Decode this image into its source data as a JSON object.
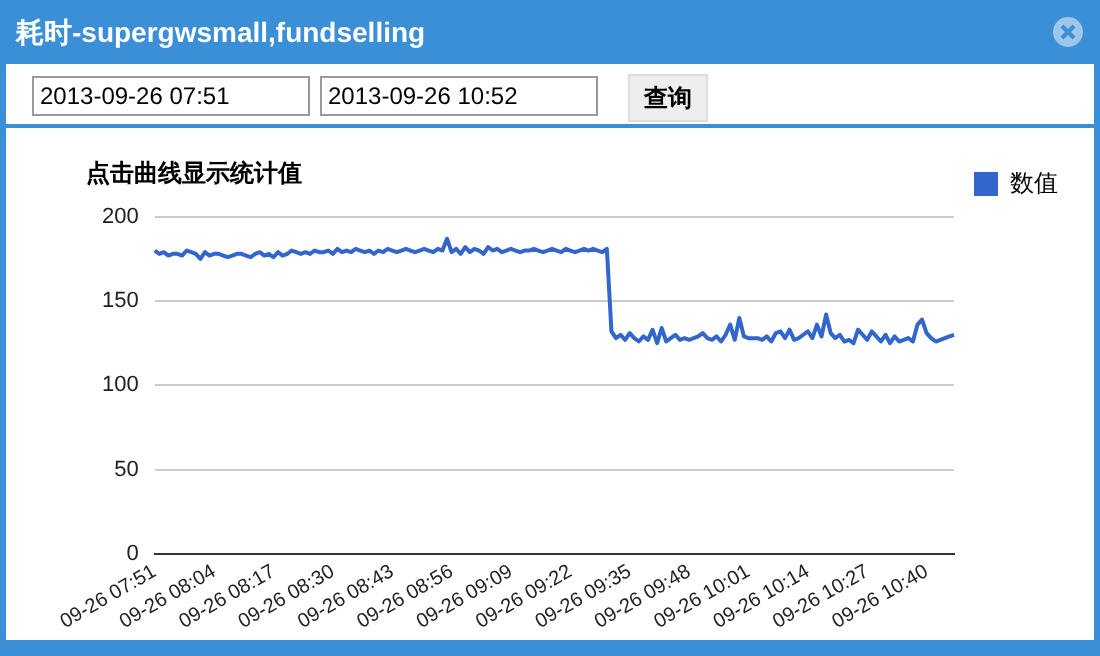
{
  "chart_data": {
    "type": "line",
    "title": "耗时-supergwsmall,fundselling",
    "subtitle": "点击曲线显示统计值",
    "annotations": [
      "2013-09-26 07:51",
      "2013-09-26 10:52",
      "查询"
    ],
    "categories": [
      "09-26 07:51",
      null,
      null,
      null,
      null,
      null,
      null,
      null,
      null,
      null,
      null,
      null,
      null,
      "09-26 08:04",
      null,
      null,
      null,
      null,
      null,
      null,
      null,
      null,
      null,
      null,
      null,
      null,
      "09-26 08:17",
      null,
      null,
      null,
      null,
      null,
      null,
      null,
      null,
      null,
      null,
      null,
      null,
      "09-26 08:30",
      null,
      null,
      null,
      null,
      null,
      null,
      null,
      null,
      null,
      null,
      null,
      null,
      "09-26 08:43",
      null,
      null,
      null,
      null,
      null,
      null,
      null,
      null,
      null,
      null,
      null,
      null,
      "09-26 08:56",
      null,
      null,
      null,
      null,
      null,
      null,
      null,
      null,
      null,
      null,
      null,
      null,
      "09-26 09:09",
      null,
      null,
      null,
      null,
      null,
      null,
      null,
      null,
      null,
      null,
      null,
      null,
      "09-26 09:22",
      null,
      null,
      null,
      null,
      null,
      null,
      null,
      null,
      null,
      null,
      null,
      null,
      "09-26 09:35",
      null,
      null,
      null,
      null,
      null,
      null,
      null,
      null,
      null,
      null,
      null,
      null,
      "09-26 09:48",
      null,
      null,
      null,
      null,
      null,
      null,
      null,
      null,
      null,
      null,
      null,
      null,
      "09-26 10:01",
      null,
      null,
      null,
      null,
      null,
      null,
      null,
      null,
      null,
      null,
      null,
      null,
      "09-26 10:14",
      null,
      null,
      null,
      null,
      null,
      null,
      null,
      null,
      null,
      null,
      null,
      null,
      "09-26 10:27",
      null,
      null,
      null,
      null,
      null,
      null,
      null,
      null,
      null,
      null,
      null,
      null,
      "09-26 10:40",
      null,
      null,
      null,
      null,
      null,
      null
    ],
    "series": [
      {
        "name": "数值",
        "color": "#3366cc",
        "values": [
          180,
          178,
          179,
          177,
          178,
          178,
          177,
          180,
          179,
          178,
          175,
          179,
          177,
          178,
          178,
          177,
          176,
          177,
          178,
          178,
          177,
          176,
          178,
          179,
          177,
          178,
          176,
          179,
          177,
          178,
          180,
          179,
          178,
          179,
          178,
          180,
          179,
          179,
          180,
          178,
          181,
          179,
          180,
          179,
          181,
          180,
          179,
          180,
          178,
          180,
          179,
          181,
          180,
          179,
          180,
          181,
          180,
          179,
          180,
          181,
          180,
          179,
          181,
          180,
          187,
          179,
          181,
          178,
          182,
          179,
          181,
          180,
          178,
          182,
          180,
          181,
          179,
          180,
          181,
          180,
          179,
          180,
          180,
          181,
          180,
          179,
          180,
          181,
          180,
          179,
          181,
          180,
          179,
          180,
          181,
          180,
          181,
          180,
          179,
          181,
          132,
          128,
          130,
          127,
          131,
          128,
          126,
          129,
          127,
          133,
          125,
          134,
          126,
          128,
          130,
          127,
          128,
          127,
          128,
          129,
          131,
          128,
          127,
          129,
          126,
          130,
          136,
          127,
          140,
          129,
          128,
          128,
          128,
          127,
          129,
          126,
          131,
          132,
          128,
          133,
          127,
          128,
          130,
          132,
          128,
          136,
          129,
          142,
          131,
          128,
          130,
          126,
          127,
          125,
          133,
          130,
          127,
          132,
          129,
          126,
          130,
          125,
          129,
          126,
          127,
          128,
          126,
          136,
          139,
          131,
          128,
          126,
          127,
          128,
          129,
          130
        ]
      }
    ],
    "ylim": [
      0,
      200
    ],
    "yticks": [
      0,
      50,
      100,
      150,
      200
    ],
    "grid": "y",
    "legend": "top right",
    "marker": "none",
    "line_style": "solid"
  }
}
